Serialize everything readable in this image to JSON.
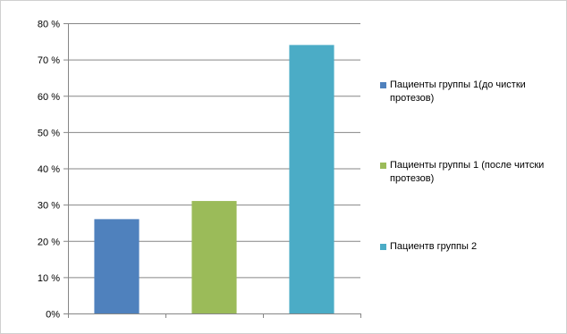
{
  "chart_data": {
    "type": "bar",
    "categories": [
      "Пациенты группы 1(до чистки протезов)",
      "Пациенты  группы 1 (после читски протезов)",
      "Пациентв группы 2"
    ],
    "values": [
      26,
      31,
      74
    ],
    "colors": [
      "#4f81bd",
      "#9bbb59",
      "#4bacc6"
    ],
    "ylim": [
      0,
      80
    ],
    "yticks": [
      0,
      10,
      20,
      30,
      40,
      50,
      60,
      70,
      80
    ],
    "ytick_labels": [
      "0%",
      "10 %",
      "20 %",
      "30 %",
      "40 %",
      "50 %",
      "60 %",
      "70 %",
      "80 %"
    ],
    "grid": true,
    "legend": {
      "placement": "right",
      "entries": [
        "Пациенты группы 1(до чистки протезов)",
        "Пациенты  группы 1 (после читски протезов)",
        "Пациентв группы 2"
      ]
    },
    "title": "",
    "xlabel": "",
    "ylabel": ""
  }
}
